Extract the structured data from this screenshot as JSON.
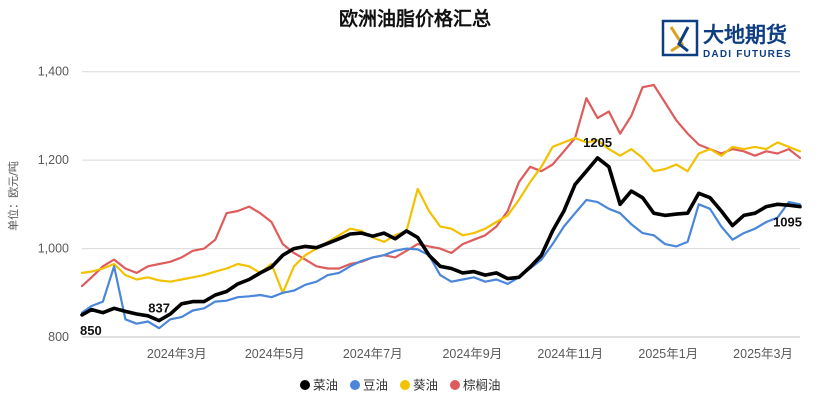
{
  "chart_data": {
    "type": "line",
    "title": "欧洲油脂价格汇总",
    "ylabel": "单位：欧元/吨",
    "xlabel": "",
    "ylim": [
      800,
      1440
    ],
    "yticks": [
      800,
      1000,
      1200,
      1400
    ],
    "ytick_labels": [
      "800",
      "1,000",
      "1,200",
      "1,400"
    ],
    "grid": true,
    "legend_position": "bottom",
    "x_range": [
      "2024-01-02",
      "2025-03-24"
    ],
    "xticks": [
      {
        "date": "2024-03-01",
        "label": "2024年3月"
      },
      {
        "date": "2024-05-01",
        "label": "2024年5月"
      },
      {
        "date": "2024-07-01",
        "label": "2024年7月"
      },
      {
        "date": "2024-09-01",
        "label": "2024年9月"
      },
      {
        "date": "2024-11-01",
        "label": "2024年11月"
      },
      {
        "date": "2025-01-01",
        "label": "2025年1月"
      },
      {
        "date": "2025-03-01",
        "label": "2025年3月"
      }
    ],
    "series": [
      {
        "name": "菜油",
        "color": "#000000",
        "width": 3.6,
        "points": [
          [
            "2024-01-02",
            850
          ],
          [
            "2024-01-08",
            862
          ],
          [
            "2024-01-15",
            855
          ],
          [
            "2024-01-22",
            865
          ],
          [
            "2024-01-29",
            858
          ],
          [
            "2024-02-05",
            852
          ],
          [
            "2024-02-12",
            848
          ],
          [
            "2024-02-19",
            837
          ],
          [
            "2024-02-26",
            852
          ],
          [
            "2024-03-04",
            875
          ],
          [
            "2024-03-11",
            880
          ],
          [
            "2024-03-18",
            880
          ],
          [
            "2024-03-25",
            895
          ],
          [
            "2024-04-01",
            903
          ],
          [
            "2024-04-08",
            920
          ],
          [
            "2024-04-15",
            930
          ],
          [
            "2024-04-22",
            945
          ],
          [
            "2024-04-29",
            958
          ],
          [
            "2024-05-06",
            985
          ],
          [
            "2024-05-13",
            1000
          ],
          [
            "2024-05-20",
            1005
          ],
          [
            "2024-05-27",
            1002
          ],
          [
            "2024-06-03",
            1012
          ],
          [
            "2024-06-10",
            1022
          ],
          [
            "2024-06-17",
            1033
          ],
          [
            "2024-06-24",
            1035
          ],
          [
            "2024-07-01",
            1028
          ],
          [
            "2024-07-08",
            1035
          ],
          [
            "2024-07-15",
            1022
          ],
          [
            "2024-07-22",
            1040
          ],
          [
            "2024-07-29",
            1025
          ],
          [
            "2024-08-05",
            985
          ],
          [
            "2024-08-12",
            960
          ],
          [
            "2024-08-19",
            955
          ],
          [
            "2024-08-26",
            945
          ],
          [
            "2024-09-02",
            948
          ],
          [
            "2024-09-09",
            940
          ],
          [
            "2024-09-16",
            945
          ],
          [
            "2024-09-23",
            932
          ],
          [
            "2024-09-30",
            935
          ],
          [
            "2024-10-07",
            958
          ],
          [
            "2024-10-14",
            985
          ],
          [
            "2024-10-21",
            1040
          ],
          [
            "2024-10-28",
            1085
          ],
          [
            "2024-11-04",
            1145
          ],
          [
            "2024-11-11",
            1175
          ],
          [
            "2024-11-18",
            1205
          ],
          [
            "2024-11-25",
            1185
          ],
          [
            "2024-12-02",
            1100
          ],
          [
            "2024-12-09",
            1130
          ],
          [
            "2024-12-16",
            1115
          ],
          [
            "2024-12-23",
            1080
          ],
          [
            "2024-12-30",
            1075
          ],
          [
            "2025-01-06",
            1078
          ],
          [
            "2025-01-13",
            1080
          ],
          [
            "2025-01-20",
            1125
          ],
          [
            "2025-01-27",
            1115
          ],
          [
            "2025-02-03",
            1085
          ],
          [
            "2025-02-10",
            1052
          ],
          [
            "2025-02-17",
            1075
          ],
          [
            "2025-02-24",
            1080
          ],
          [
            "2025-03-03",
            1095
          ],
          [
            "2025-03-10",
            1100
          ],
          [
            "2025-03-17",
            1098
          ],
          [
            "2025-03-24",
            1095
          ]
        ]
      },
      {
        "name": "豆油",
        "color": "#4a86d9",
        "width": 2.2,
        "points": [
          [
            "2024-01-02",
            855
          ],
          [
            "2024-01-08",
            870
          ],
          [
            "2024-01-15",
            880
          ],
          [
            "2024-01-22",
            960
          ],
          [
            "2024-01-29",
            840
          ],
          [
            "2024-02-05",
            830
          ],
          [
            "2024-02-12",
            835
          ],
          [
            "2024-02-19",
            820
          ],
          [
            "2024-02-26",
            840
          ],
          [
            "2024-03-04",
            845
          ],
          [
            "2024-03-11",
            860
          ],
          [
            "2024-03-18",
            865
          ],
          [
            "2024-03-25",
            880
          ],
          [
            "2024-04-01",
            882
          ],
          [
            "2024-04-08",
            890
          ],
          [
            "2024-04-15",
            892
          ],
          [
            "2024-04-22",
            895
          ],
          [
            "2024-04-29",
            890
          ],
          [
            "2024-05-06",
            900
          ],
          [
            "2024-05-13",
            905
          ],
          [
            "2024-05-20",
            918
          ],
          [
            "2024-05-27",
            925
          ],
          [
            "2024-06-03",
            940
          ],
          [
            "2024-06-10",
            945
          ],
          [
            "2024-06-17",
            960
          ],
          [
            "2024-06-24",
            972
          ],
          [
            "2024-07-01",
            980
          ],
          [
            "2024-07-08",
            985
          ],
          [
            "2024-07-15",
            995
          ],
          [
            "2024-07-22",
            1000
          ],
          [
            "2024-07-29",
            998
          ],
          [
            "2024-08-05",
            985
          ],
          [
            "2024-08-12",
            940
          ],
          [
            "2024-08-19",
            925
          ],
          [
            "2024-08-26",
            930
          ],
          [
            "2024-09-02",
            935
          ],
          [
            "2024-09-09",
            925
          ],
          [
            "2024-09-16",
            930
          ],
          [
            "2024-09-23",
            920
          ],
          [
            "2024-09-30",
            935
          ],
          [
            "2024-10-07",
            955
          ],
          [
            "2024-10-14",
            975
          ],
          [
            "2024-10-21",
            1010
          ],
          [
            "2024-10-28",
            1050
          ],
          [
            "2024-11-04",
            1080
          ],
          [
            "2024-11-11",
            1110
          ],
          [
            "2024-11-18",
            1105
          ],
          [
            "2024-11-25",
            1090
          ],
          [
            "2024-12-02",
            1080
          ],
          [
            "2024-12-09",
            1055
          ],
          [
            "2024-12-16",
            1035
          ],
          [
            "2024-12-23",
            1030
          ],
          [
            "2024-12-30",
            1010
          ],
          [
            "2025-01-06",
            1005
          ],
          [
            "2025-01-13",
            1015
          ],
          [
            "2025-01-20",
            1100
          ],
          [
            "2025-01-27",
            1090
          ],
          [
            "2025-02-03",
            1050
          ],
          [
            "2025-02-10",
            1020
          ],
          [
            "2025-02-17",
            1035
          ],
          [
            "2025-02-24",
            1045
          ],
          [
            "2025-03-03",
            1060
          ],
          [
            "2025-03-10",
            1070
          ],
          [
            "2025-03-17",
            1105
          ],
          [
            "2025-03-24",
            1100
          ]
        ]
      },
      {
        "name": "葵油",
        "color": "#f2c200",
        "width": 2.2,
        "points": [
          [
            "2024-01-02",
            945
          ],
          [
            "2024-01-08",
            948
          ],
          [
            "2024-01-15",
            955
          ],
          [
            "2024-01-22",
            965
          ],
          [
            "2024-01-29",
            940
          ],
          [
            "2024-02-05",
            930
          ],
          [
            "2024-02-12",
            935
          ],
          [
            "2024-02-19",
            928
          ],
          [
            "2024-02-26",
            925
          ],
          [
            "2024-03-04",
            930
          ],
          [
            "2024-03-11",
            935
          ],
          [
            "2024-03-18",
            940
          ],
          [
            "2024-03-25",
            948
          ],
          [
            "2024-04-01",
            955
          ],
          [
            "2024-04-08",
            965
          ],
          [
            "2024-04-15",
            960
          ],
          [
            "2024-04-22",
            945
          ],
          [
            "2024-04-29",
            965
          ],
          [
            "2024-05-06",
            900
          ],
          [
            "2024-05-13",
            960
          ],
          [
            "2024-05-20",
            985
          ],
          [
            "2024-05-27",
            1000
          ],
          [
            "2024-06-03",
            1015
          ],
          [
            "2024-06-10",
            1030
          ],
          [
            "2024-06-17",
            1045
          ],
          [
            "2024-06-24",
            1040
          ],
          [
            "2024-07-01",
            1025
          ],
          [
            "2024-07-08",
            1015
          ],
          [
            "2024-07-15",
            1030
          ],
          [
            "2024-07-22",
            1040
          ],
          [
            "2024-07-29",
            1135
          ],
          [
            "2024-08-05",
            1085
          ],
          [
            "2024-08-12",
            1050
          ],
          [
            "2024-08-19",
            1045
          ],
          [
            "2024-08-26",
            1030
          ],
          [
            "2024-09-02",
            1035
          ],
          [
            "2024-09-09",
            1045
          ],
          [
            "2024-09-16",
            1060
          ],
          [
            "2024-09-23",
            1075
          ],
          [
            "2024-09-30",
            1110
          ],
          [
            "2024-10-07",
            1150
          ],
          [
            "2024-10-14",
            1185
          ],
          [
            "2024-10-21",
            1230
          ],
          [
            "2024-10-28",
            1240
          ],
          [
            "2024-11-04",
            1250
          ],
          [
            "2024-11-11",
            1240
          ],
          [
            "2024-11-18",
            1245
          ],
          [
            "2024-11-25",
            1225
          ],
          [
            "2024-12-02",
            1210
          ],
          [
            "2024-12-09",
            1225
          ],
          [
            "2024-12-16",
            1205
          ],
          [
            "2024-12-23",
            1175
          ],
          [
            "2024-12-30",
            1180
          ],
          [
            "2025-01-06",
            1190
          ],
          [
            "2025-01-13",
            1175
          ],
          [
            "2025-01-20",
            1215
          ],
          [
            "2025-01-27",
            1225
          ],
          [
            "2025-02-03",
            1210
          ],
          [
            "2025-02-10",
            1230
          ],
          [
            "2025-02-17",
            1225
          ],
          [
            "2025-02-24",
            1230
          ],
          [
            "2025-03-03",
            1225
          ],
          [
            "2025-03-10",
            1240
          ],
          [
            "2025-03-17",
            1230
          ],
          [
            "2025-03-24",
            1220
          ]
        ]
      },
      {
        "name": "棕榈油",
        "color": "#de5c5c",
        "width": 2.2,
        "points": [
          [
            "2024-01-02",
            915
          ],
          [
            "2024-01-08",
            935
          ],
          [
            "2024-01-15",
            960
          ],
          [
            "2024-01-22",
            975
          ],
          [
            "2024-01-29",
            955
          ],
          [
            "2024-02-05",
            945
          ],
          [
            "2024-02-12",
            960
          ],
          [
            "2024-02-19",
            965
          ],
          [
            "2024-02-26",
            970
          ],
          [
            "2024-03-04",
            980
          ],
          [
            "2024-03-11",
            995
          ],
          [
            "2024-03-18",
            1000
          ],
          [
            "2024-03-25",
            1020
          ],
          [
            "2024-04-01",
            1080
          ],
          [
            "2024-04-08",
            1085
          ],
          [
            "2024-04-15",
            1095
          ],
          [
            "2024-04-22",
            1080
          ],
          [
            "2024-04-29",
            1060
          ],
          [
            "2024-05-06",
            1010
          ],
          [
            "2024-05-13",
            990
          ],
          [
            "2024-05-20",
            975
          ],
          [
            "2024-05-27",
            960
          ],
          [
            "2024-06-03",
            955
          ],
          [
            "2024-06-10",
            955
          ],
          [
            "2024-06-17",
            965
          ],
          [
            "2024-06-24",
            970
          ],
          [
            "2024-07-01",
            980
          ],
          [
            "2024-07-08",
            985
          ],
          [
            "2024-07-15",
            980
          ],
          [
            "2024-07-22",
            995
          ],
          [
            "2024-07-29",
            1010
          ],
          [
            "2024-08-05",
            1005
          ],
          [
            "2024-08-12",
            1000
          ],
          [
            "2024-08-19",
            990
          ],
          [
            "2024-08-26",
            1010
          ],
          [
            "2024-09-02",
            1020
          ],
          [
            "2024-09-09",
            1030
          ],
          [
            "2024-09-16",
            1050
          ],
          [
            "2024-09-23",
            1085
          ],
          [
            "2024-09-30",
            1150
          ],
          [
            "2024-10-07",
            1185
          ],
          [
            "2024-10-14",
            1175
          ],
          [
            "2024-10-21",
            1190
          ],
          [
            "2024-10-28",
            1220
          ],
          [
            "2024-11-04",
            1250
          ],
          [
            "2024-11-11",
            1340
          ],
          [
            "2024-11-18",
            1295
          ],
          [
            "2024-11-25",
            1310
          ],
          [
            "2024-12-02",
            1260
          ],
          [
            "2024-12-09",
            1300
          ],
          [
            "2024-12-16",
            1365
          ],
          [
            "2024-12-23",
            1370
          ],
          [
            "2024-12-30",
            1330
          ],
          [
            "2025-01-06",
            1290
          ],
          [
            "2025-01-13",
            1260
          ],
          [
            "2025-01-20",
            1235
          ],
          [
            "2025-01-27",
            1225
          ],
          [
            "2025-02-03",
            1215
          ],
          [
            "2025-02-10",
            1225
          ],
          [
            "2025-02-17",
            1220
          ],
          [
            "2025-02-24",
            1210
          ],
          [
            "2025-03-03",
            1220
          ],
          [
            "2025-03-10",
            1215
          ],
          [
            "2025-03-17",
            1225
          ],
          [
            "2025-03-24",
            1205
          ]
        ]
      }
    ],
    "annotations": [
      {
        "text": "850",
        "date": "2024-01-02",
        "value": 850,
        "series": "菜油"
      },
      {
        "text": "837",
        "date": "2024-02-19",
        "value": 837,
        "series": "菜油"
      },
      {
        "text": "1205",
        "date": "2024-11-18",
        "value": 1205,
        "series": "菜油"
      },
      {
        "text": "1095",
        "date": "2025-03-24",
        "value": 1095,
        "series": "菜油"
      }
    ]
  },
  "logo": {
    "name_cn": "大地期货",
    "name_en": "DADI FUTURES",
    "colors": {
      "blue": "#0e3e82",
      "gold": "#d9a520"
    }
  }
}
